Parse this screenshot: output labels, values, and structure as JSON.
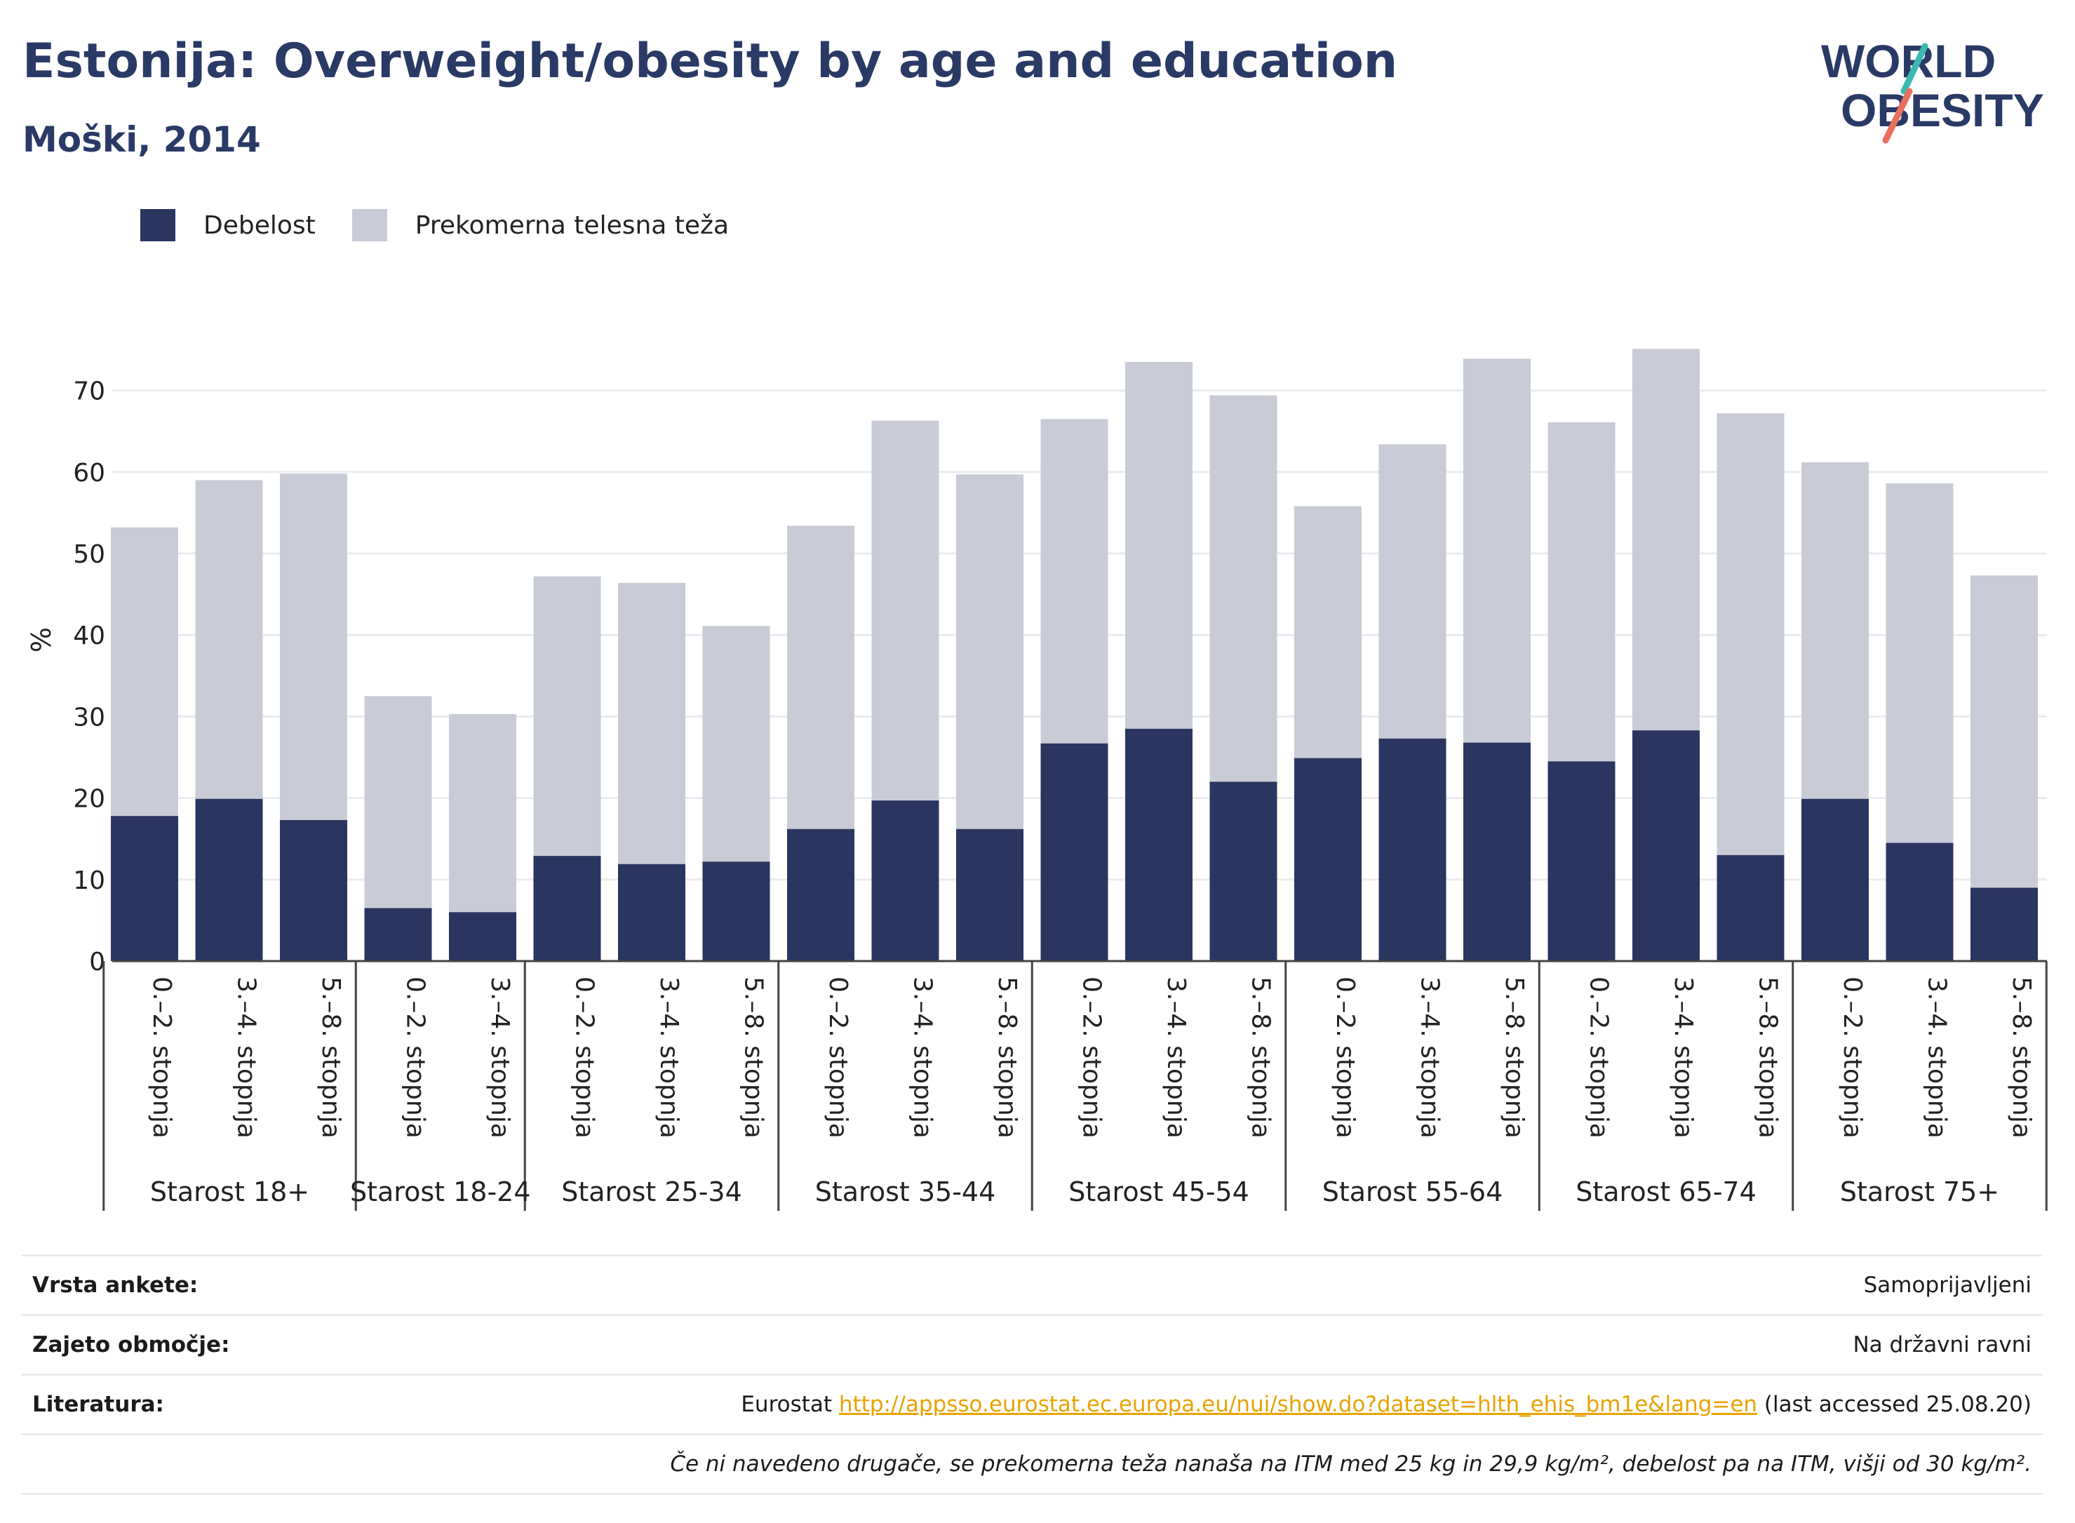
{
  "header": {
    "title": "Estonija: Overweight/obesity by age and education",
    "subtitle": "Moški, 2014",
    "logo_line1": "WORLD",
    "logo_line2": "OBESITY"
  },
  "legend": {
    "items": [
      {
        "label": "Debelost",
        "color": "#2a3560"
      },
      {
        "label": "Prekomerna telesna teža",
        "color": "#c9cbd6"
      }
    ]
  },
  "chart_data": {
    "type": "bar",
    "stacked": true,
    "ylabel": "%",
    "ylim": [
      0,
      80
    ],
    "yticks": [
      0,
      10,
      20,
      30,
      40,
      50,
      60,
      70
    ],
    "grid": true,
    "legend_position": "top-left",
    "groups": [
      {
        "name": "Starost 18+",
        "categories": [
          "0.–2. stopnja",
          "3.–4. stopnja",
          "5.–8. stopnja"
        ]
      },
      {
        "name": "Starost 18-24",
        "categories": [
          "0.–2. stopnja",
          "3.–4. stopnja"
        ]
      },
      {
        "name": "Starost 25-34",
        "categories": [
          "0.–2. stopnja",
          "3.–4. stopnja",
          "5.–8. stopnja"
        ]
      },
      {
        "name": "Starost 35-44",
        "categories": [
          "0.–2. stopnja",
          "3.–4. stopnja",
          "5.–8. stopnja"
        ]
      },
      {
        "name": "Starost 45-54",
        "categories": [
          "0.–2. stopnja",
          "3.–4. stopnja",
          "5.–8. stopnja"
        ]
      },
      {
        "name": "Starost 55-64",
        "categories": [
          "0.–2. stopnja",
          "3.–4. stopnja",
          "5.–8. stopnja"
        ]
      },
      {
        "name": "Starost 65-74",
        "categories": [
          "0.–2. stopnja",
          "3.–4. stopnja",
          "5.–8. stopnja"
        ]
      },
      {
        "name": "Starost 75+",
        "categories": [
          "0.–2. stopnja",
          "3.–4. stopnja",
          "5.–8. stopnja"
        ]
      }
    ],
    "series": [
      {
        "name": "Debelost",
        "color": "#2a3560",
        "values": [
          17.8,
          19.9,
          17.3,
          6.5,
          6.0,
          12.9,
          11.9,
          12.2,
          16.2,
          19.7,
          16.2,
          26.7,
          28.5,
          22.0,
          24.9,
          27.3,
          26.8,
          24.5,
          28.3,
          13.0,
          19.9,
          14.5,
          9.0
        ]
      },
      {
        "name": "Prekomerna telesna teža",
        "color": "#c9cbd6",
        "values": [
          35.4,
          39.1,
          42.5,
          26.0,
          24.3,
          34.3,
          34.5,
          28.9,
          37.2,
          46.6,
          43.5,
          39.8,
          45.0,
          47.4,
          30.9,
          36.1,
          47.1,
          41.6,
          46.8,
          54.2,
          41.3,
          44.1,
          38.3
        ]
      }
    ]
  },
  "info": {
    "rows": [
      {
        "label": "Vrsta ankete:",
        "value": "Samoprijavljeni"
      },
      {
        "label": "Zajeto območje:",
        "value": "Na državni ravni"
      },
      {
        "label": "Literatura:",
        "prefix": "Eurostat ",
        "link": "http://appsso.eurostat.ec.europa.eu/nui/show.do?dataset=hlth_ehis_bm1e&lang=en",
        "suffix": " (last accessed 25.08.20)"
      }
    ],
    "note": "Če ni navedeno drugače, se prekomerna teža nanaša na ITM med 25 kg in 29,9 kg/m², debelost pa na ITM, višji od 30 kg/m²."
  }
}
